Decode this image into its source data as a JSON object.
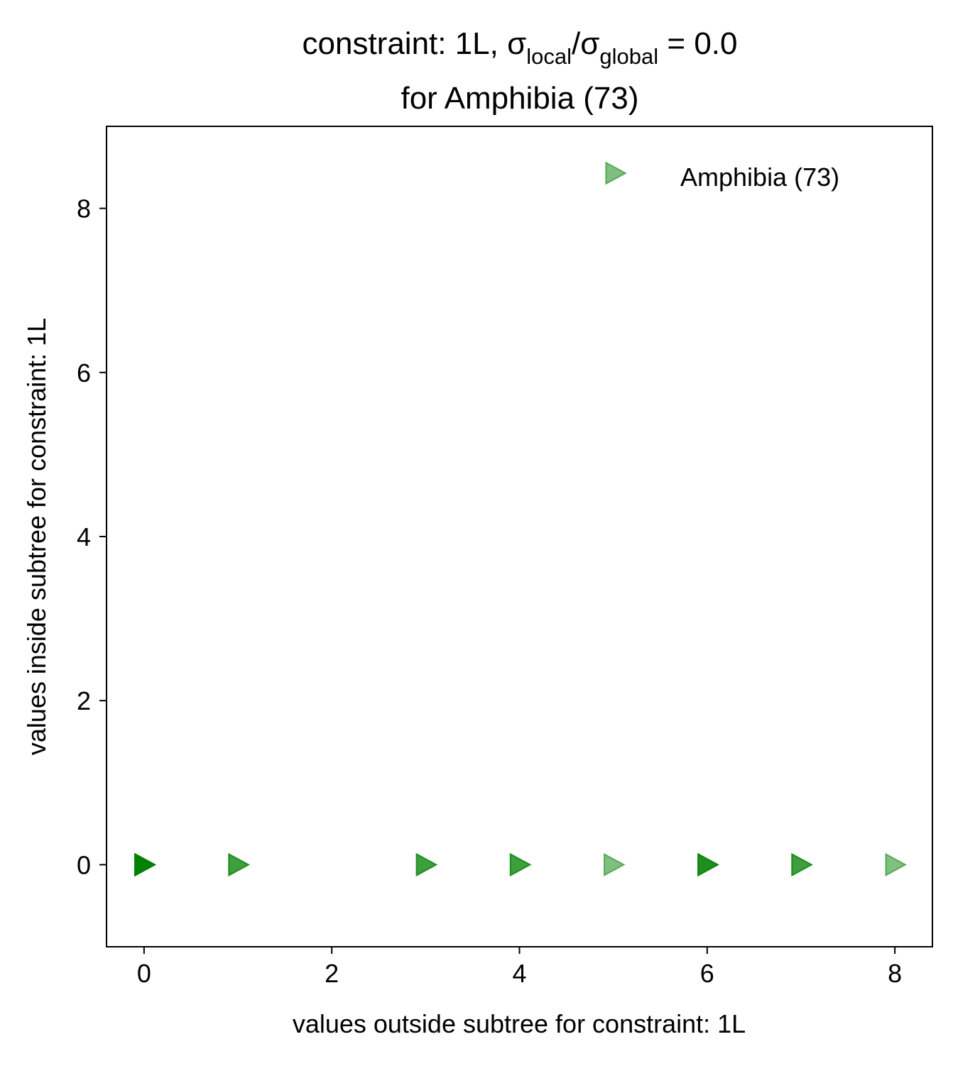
{
  "chart_data": {
    "type": "scatter",
    "title": {
      "line1_prefix": "constraint: 1L, σ",
      "sub1": "local",
      "mid": "/σ",
      "sub2": "global",
      "suffix": " =  0.0",
      "line2": "for Amphibia (73)"
    },
    "xlabel": "values outside subtree for constraint: 1L",
    "ylabel": "values inside subtree for constraint: 1L",
    "xlim": [
      -0.4,
      8.4
    ],
    "ylim": [
      -1,
      9
    ],
    "xticks": [
      0,
      2,
      4,
      6,
      8
    ],
    "yticks": [
      0,
      2,
      4,
      6,
      8
    ],
    "grid": false,
    "legend": {
      "position": "top-right"
    },
    "marker": "triangle-right",
    "series": [
      {
        "name": "Amphibia (73)",
        "color": "#008000",
        "alpha": 0.5,
        "points": [
          {
            "x": 0,
            "y": 0,
            "count": 6
          },
          {
            "x": 1,
            "y": 0,
            "count": 2
          },
          {
            "x": 3,
            "y": 0,
            "count": 2
          },
          {
            "x": 4,
            "y": 0,
            "count": 2
          },
          {
            "x": 5,
            "y": 0,
            "count": 1
          },
          {
            "x": 6,
            "y": 0,
            "count": 3
          },
          {
            "x": 7,
            "y": 0,
            "count": 2
          },
          {
            "x": 8,
            "y": 0,
            "count": 1
          }
        ]
      }
    ]
  }
}
